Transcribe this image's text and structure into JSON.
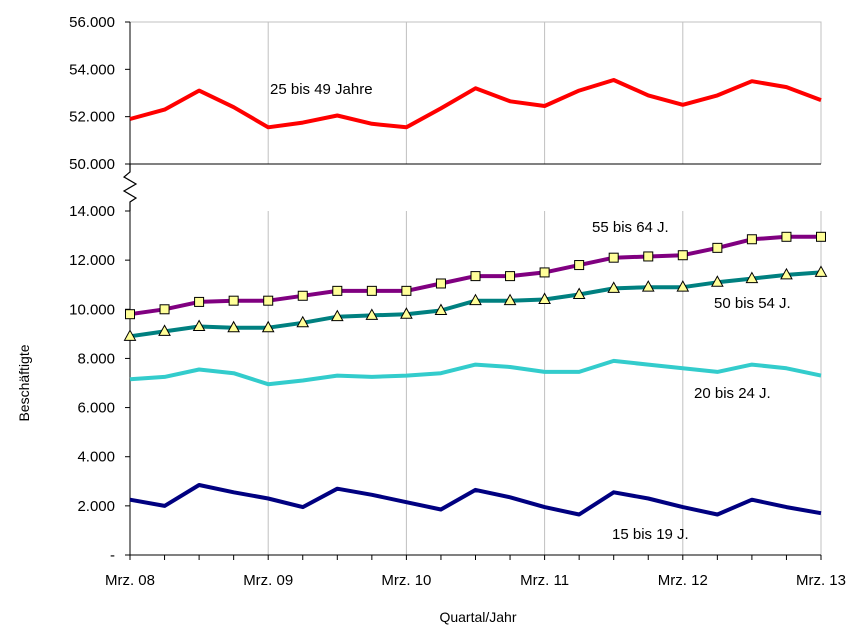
{
  "chart_data": {
    "type": "line",
    "xlabel": "Quartal/Jahr",
    "ylabel": "Beschäftigte",
    "x_tick_labels": [
      "Mrz. 08",
      "Mrz. 09",
      "Mrz. 10",
      "Mrz. 11",
      "Mrz. 12",
      "Mrz. 13"
    ],
    "panels": {
      "top": {
        "ylim": [
          50000,
          56000
        ],
        "y_tick_labels": [
          "56.000",
          "54.000",
          "52.000",
          "50.000"
        ],
        "y_tick_values": [
          56000,
          54000,
          52000,
          50000
        ]
      },
      "bottom": {
        "ylim": [
          0,
          14000
        ],
        "y_tick_labels": [
          "14.000",
          "12.000",
          "10.000",
          "8.000",
          "6.000",
          "4.000",
          "2.000",
          "-"
        ],
        "y_tick_values": [
          14000,
          12000,
          10000,
          8000,
          6000,
          4000,
          2000,
          0
        ]
      }
    },
    "x_index": [
      0,
      1,
      2,
      3,
      4,
      5,
      6,
      7,
      8,
      9,
      10,
      11,
      12,
      13,
      14,
      15,
      16,
      17,
      18,
      19,
      20
    ],
    "series": [
      {
        "name": "25 bis 49 Jahre",
        "panel": "top",
        "color": "#ff0000",
        "marker": "none",
        "values": [
          51900,
          52300,
          53100,
          52400,
          51550,
          51750,
          52050,
          51700,
          51550,
          52350,
          53200,
          52650,
          52450,
          53100,
          53550,
          52900,
          52500,
          52900,
          53500,
          53250,
          52700
        ]
      },
      {
        "name": "55 bis 64 J.",
        "panel": "bottom",
        "color": "#800080",
        "marker": "square",
        "marker_fill": "#ffff99",
        "values": [
          9800,
          10000,
          10300,
          10350,
          10350,
          10550,
          10750,
          10750,
          10750,
          11050,
          11350,
          11350,
          11500,
          11800,
          12100,
          12150,
          12200,
          12500,
          12850,
          12950,
          12950
        ]
      },
      {
        "name": "50 bis 54 J.",
        "panel": "bottom",
        "color": "#008080",
        "marker": "triangle",
        "marker_fill": "#ffff99",
        "values": [
          8900,
          9100,
          9300,
          9250,
          9250,
          9450,
          9700,
          9750,
          9800,
          9950,
          10350,
          10350,
          10400,
          10600,
          10850,
          10900,
          10900,
          11100,
          11250,
          11400,
          11500
        ]
      },
      {
        "name": "20 bis 24 J.",
        "panel": "bottom",
        "color": "#33cccc",
        "marker": "none",
        "values": [
          7150,
          7250,
          7550,
          7400,
          6950,
          7100,
          7300,
          7250,
          7300,
          7400,
          7750,
          7650,
          7450,
          7450,
          7900,
          7750,
          7600,
          7450,
          7750,
          7600,
          7300
        ]
      },
      {
        "name": "15 bis 19 J.",
        "panel": "bottom",
        "color": "#000080",
        "marker": "none",
        "values": [
          2250,
          2000,
          2850,
          2550,
          2300,
          1950,
          2700,
          2450,
          2150,
          1850,
          2650,
          2350,
          1950,
          1650,
          2550,
          2300,
          1950,
          1650,
          2250,
          1950,
          1700
        ]
      }
    ],
    "grid": {
      "vertical": true,
      "horizontal": false
    },
    "axis_break": "between panels"
  }
}
